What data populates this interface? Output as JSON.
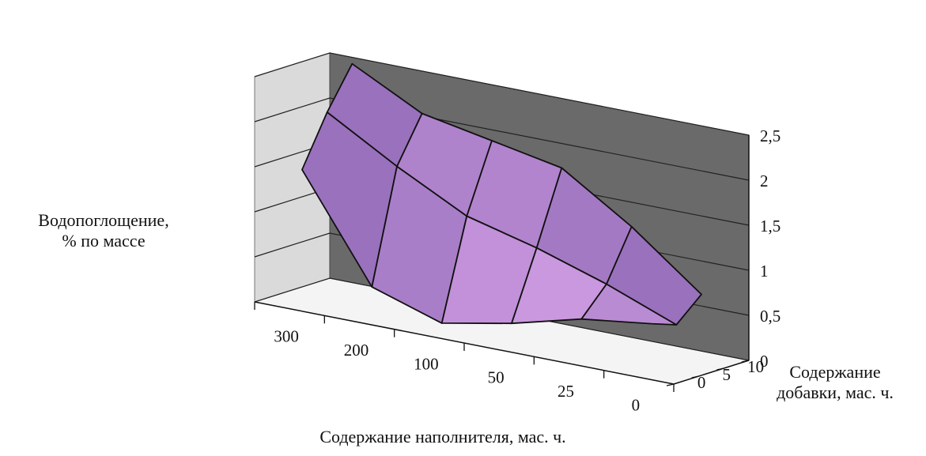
{
  "chart_data": {
    "type": "3d-surface",
    "ylabel": [
      "Водопоглощение,",
      "% по массе"
    ],
    "xlabel": "Содержание наполнителя, мас. ч.",
    "zlabel": [
      "Содержание",
      "добавки, мас. ч."
    ],
    "x_categories": [
      "300",
      "200",
      "100",
      "50",
      "25",
      "0"
    ],
    "z_categories": [
      "0",
      "5",
      "10"
    ],
    "y_ticks": [
      "0",
      "0,5",
      "1",
      "1,5",
      "2",
      "2,5"
    ],
    "ylim": [
      0,
      2.5
    ],
    "series": [
      {
        "name": "0",
        "values": [
          1.5,
          0.35,
          0.1,
          0.25,
          0.45,
          0.55
        ]
      },
      {
        "name": "5",
        "values": [
          2.05,
          1.6,
          1.2,
          1.0,
          0.75,
          0.45
        ]
      },
      {
        "name": "10",
        "values": [
          2.5,
          2.1,
          1.95,
          1.8,
          1.3,
          0.7
        ]
      }
    ],
    "colors": {
      "surface_light": "#efb6fa",
      "surface_mid": "#c79af7",
      "surface_dark": "#7d5aa8",
      "back_wall": "#6a6a6a",
      "side_wall": "#dadada",
      "floor": "#f4f4f4"
    }
  }
}
